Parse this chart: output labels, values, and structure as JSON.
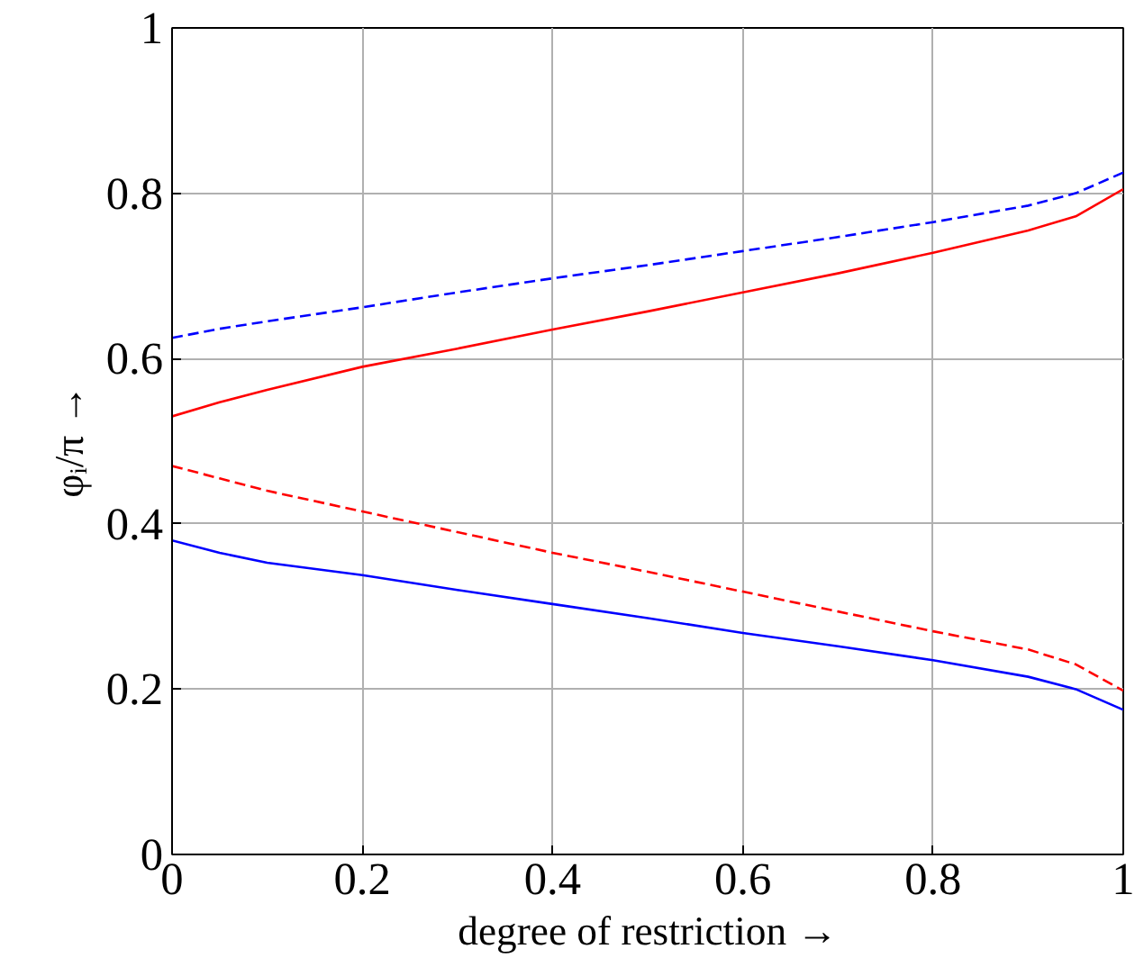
{
  "chart_data": {
    "type": "line",
    "xlabel": "degree of restriction →",
    "ylabel": "φᵢ/π →",
    "x": [
      0,
      0.05,
      0.1,
      0.2,
      0.3,
      0.4,
      0.5,
      0.6,
      0.7,
      0.8,
      0.9,
      0.95,
      1
    ],
    "series": [
      {
        "color": "#0000ff",
        "line_style": "dashed",
        "values": [
          0.625,
          0.636,
          0.645,
          0.662,
          0.68,
          0.697,
          0.713,
          0.73,
          0.747,
          0.765,
          0.785,
          0.8,
          0.825
        ]
      },
      {
        "color": "#ff0000",
        "line_style": "solid",
        "values": [
          0.53,
          0.547,
          0.562,
          0.59,
          0.612,
          0.635,
          0.657,
          0.68,
          0.703,
          0.728,
          0.755,
          0.772,
          0.805
        ]
      },
      {
        "color": "#ff0000",
        "line_style": "dashed",
        "values": [
          0.47,
          0.455,
          0.44,
          0.415,
          0.39,
          0.365,
          0.342,
          0.318,
          0.294,
          0.27,
          0.248,
          0.23,
          0.198
        ]
      },
      {
        "color": "#0000ff",
        "line_style": "solid",
        "values": [
          0.38,
          0.365,
          0.353,
          0.338,
          0.32,
          0.303,
          0.286,
          0.268,
          0.252,
          0.235,
          0.215,
          0.2,
          0.175
        ]
      }
    ],
    "xlim": [
      0,
      1
    ],
    "ylim": [
      0,
      1
    ],
    "xticks": [
      0,
      0.2,
      0.4,
      0.6,
      0.8,
      1
    ],
    "yticks": [
      0,
      0.2,
      0.4,
      0.6,
      0.8,
      1
    ],
    "grid": true,
    "marker": "none"
  }
}
